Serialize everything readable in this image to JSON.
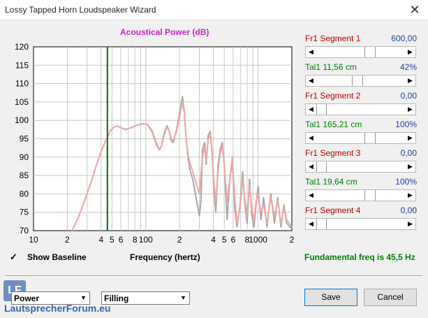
{
  "window": {
    "title": "Lossy Tapped Horn Loudspeaker Wizard",
    "close_glyph": "✕"
  },
  "chart_data": {
    "type": "line",
    "title": "Acoustical Power (dB)",
    "xlabel": "Frequency (hertz)",
    "ylabel": "",
    "xscale": "log",
    "xlim": [
      10,
      2000
    ],
    "ylim": [
      70,
      120
    ],
    "yticks": [
      70,
      75,
      80,
      85,
      90,
      95,
      100,
      105,
      110,
      115,
      120
    ],
    "xtick_labels": [
      {
        "x": 10,
        "label": "10"
      },
      {
        "x": 20,
        "label": "2"
      },
      {
        "x": 40,
        "label": "4"
      },
      {
        "x": 50,
        "label": "5"
      },
      {
        "x": 60,
        "label": "6"
      },
      {
        "x": 80,
        "label": "8"
      },
      {
        "x": 100,
        "label": "100"
      },
      {
        "x": 200,
        "label": "2"
      },
      {
        "x": 400,
        "label": "4"
      },
      {
        "x": 500,
        "label": "5"
      },
      {
        "x": 600,
        "label": "6"
      },
      {
        "x": 800,
        "label": "8"
      },
      {
        "x": 1000,
        "label": "1000"
      },
      {
        "x": 2000,
        "label": "2"
      }
    ],
    "marker_x": 45.5,
    "grid": true,
    "series": [
      {
        "color": "#f0a8a8",
        "points": [
          [
            22,
            70
          ],
          [
            25,
            73.5
          ],
          [
            28,
            77.5
          ],
          [
            32,
            82.5
          ],
          [
            36,
            87.5
          ],
          [
            40,
            91.5
          ],
          [
            44,
            94.5
          ],
          [
            48,
            97
          ],
          [
            52,
            98.2
          ],
          [
            56,
            98.4
          ],
          [
            60,
            98
          ],
          [
            66,
            97.5
          ],
          [
            74,
            98
          ],
          [
            84,
            98.7
          ],
          [
            94,
            99.1
          ],
          [
            104,
            98.8
          ],
          [
            114,
            97.2
          ],
          [
            124,
            94
          ],
          [
            132,
            92.2
          ],
          [
            138,
            93
          ],
          [
            146,
            96
          ],
          [
            154,
            98
          ],
          [
            160,
            97.5
          ],
          [
            168,
            95
          ],
          [
            176,
            94.5
          ],
          [
            188,
            97
          ],
          [
            200,
            101
          ],
          [
            212,
            105
          ],
          [
            220,
            102
          ],
          [
            230,
            94
          ],
          [
            240,
            90
          ],
          [
            250,
            88
          ],
          [
            262,
            86
          ],
          [
            280,
            83
          ],
          [
            300,
            80
          ],
          [
            315,
            88
          ],
          [
            330,
            93
          ],
          [
            345,
            89
          ],
          [
            360,
            95
          ],
          [
            375,
            96
          ],
          [
            390,
            91
          ],
          [
            405,
            83
          ],
          [
            420,
            78
          ],
          [
            440,
            86
          ],
          [
            460,
            91
          ],
          [
            480,
            93
          ],
          [
            500,
            88
          ],
          [
            530,
            78
          ],
          [
            560,
            84
          ],
          [
            590,
            90
          ],
          [
            620,
            79
          ],
          [
            650,
            72
          ],
          [
            690,
            76
          ],
          [
            730,
            84
          ],
          [
            760,
            79
          ],
          [
            800,
            74
          ],
          [
            840,
            82
          ],
          [
            880,
            76
          ],
          [
            920,
            73
          ],
          [
            960,
            78
          ],
          [
            1000,
            80
          ],
          [
            1060,
            75
          ],
          [
            1120,
            77
          ],
          [
            1200,
            72
          ],
          [
            1300,
            79
          ],
          [
            1400,
            74
          ],
          [
            1500,
            78
          ],
          [
            1600,
            72
          ],
          [
            1700,
            76
          ],
          [
            1800,
            73
          ],
          [
            2000,
            71
          ]
        ]
      },
      {
        "color": "#a8a8a8",
        "points": [
          [
            22,
            70
          ],
          [
            25,
            73.5
          ],
          [
            28,
            77.5
          ],
          [
            32,
            82.5
          ],
          [
            36,
            87.5
          ],
          [
            40,
            91.5
          ],
          [
            44,
            94.5
          ],
          [
            48,
            97
          ],
          [
            52,
            98.2
          ],
          [
            56,
            98.4
          ],
          [
            60,
            98
          ],
          [
            66,
            97.5
          ],
          [
            74,
            98
          ],
          [
            84,
            98.7
          ],
          [
            94,
            99.1
          ],
          [
            104,
            98.8
          ],
          [
            114,
            96.8
          ],
          [
            124,
            93.5
          ],
          [
            132,
            92
          ],
          [
            138,
            93
          ],
          [
            146,
            96.5
          ],
          [
            154,
            98.5
          ],
          [
            160,
            97.5
          ],
          [
            168,
            94.5
          ],
          [
            176,
            94
          ],
          [
            188,
            97.5
          ],
          [
            200,
            102
          ],
          [
            212,
            106.5
          ],
          [
            220,
            102.5
          ],
          [
            230,
            94
          ],
          [
            240,
            89
          ],
          [
            250,
            86
          ],
          [
            262,
            84
          ],
          [
            280,
            79
          ],
          [
            300,
            74
          ],
          [
            310,
            78
          ],
          [
            320,
            92
          ],
          [
            335,
            94
          ],
          [
            345,
            88
          ],
          [
            360,
            96
          ],
          [
            375,
            97
          ],
          [
            390,
            91
          ],
          [
            405,
            81
          ],
          [
            420,
            75
          ],
          [
            440,
            88
          ],
          [
            460,
            92
          ],
          [
            480,
            94
          ],
          [
            500,
            88
          ],
          [
            530,
            73
          ],
          [
            560,
            84
          ],
          [
            590,
            89
          ],
          [
            620,
            76
          ],
          [
            650,
            71
          ],
          [
            690,
            77
          ],
          [
            730,
            86
          ],
          [
            760,
            78
          ],
          [
            800,
            72
          ],
          [
            840,
            84
          ],
          [
            880,
            74
          ],
          [
            920,
            71
          ],
          [
            960,
            77
          ],
          [
            1000,
            82
          ],
          [
            1060,
            73
          ],
          [
            1120,
            79
          ],
          [
            1200,
            71
          ],
          [
            1300,
            80
          ],
          [
            1400,
            72
          ],
          [
            1500,
            79
          ],
          [
            1600,
            71
          ],
          [
            1700,
            77
          ],
          [
            1800,
            72
          ],
          [
            2000,
            70.5
          ]
        ]
      }
    ]
  },
  "segments": [
    {
      "label": "Fr1  Segment 1",
      "value": "600,00",
      "color": "red",
      "thumb_level": 0.62,
      "thumb_width": 0.12
    },
    {
      "label": "Tal1  11,56 cm",
      "value": "42%",
      "color": "green",
      "thumb_level": 0.46,
      "thumb_width": 0.12
    },
    {
      "label": "Fr1  Segment 2",
      "value": "0,00",
      "color": "red",
      "thumb_level": 0.0,
      "thumb_width": 0.12
    },
    {
      "label": "Tal1  165,21 cm",
      "value": "100%",
      "color": "green",
      "thumb_level": 0.62,
      "thumb_width": 0.12
    },
    {
      "label": "Fr1  Segment 3",
      "value": "0,00",
      "color": "red",
      "thumb_level": 0.0,
      "thumb_width": 0.12
    },
    {
      "label": "Tal1  19,64 cm",
      "value": "100%",
      "color": "green",
      "thumb_level": 0.62,
      "thumb_width": 0.12
    },
    {
      "label": "Fr1  Segment 4",
      "value": "0,00",
      "color": "red",
      "thumb_level": 0.0,
      "thumb_width": 0.12
    }
  ],
  "show_baseline": {
    "label": "Show Baseline",
    "checked": true,
    "check_glyph": "✓"
  },
  "frequency_label": "Frequency (hertz)",
  "fundamental": "Fundamental freq is 45,5 Hz",
  "selects": {
    "power": "Power",
    "filling": "Filling",
    "arrow": "▼"
  },
  "buttons": {
    "save": "Save",
    "cancel": "Cancel"
  },
  "scroll_arrows": {
    "left": "◀",
    "right": "▶"
  },
  "logo": {
    "text": "LF",
    "forum": "LautsprecherForum.eu"
  }
}
